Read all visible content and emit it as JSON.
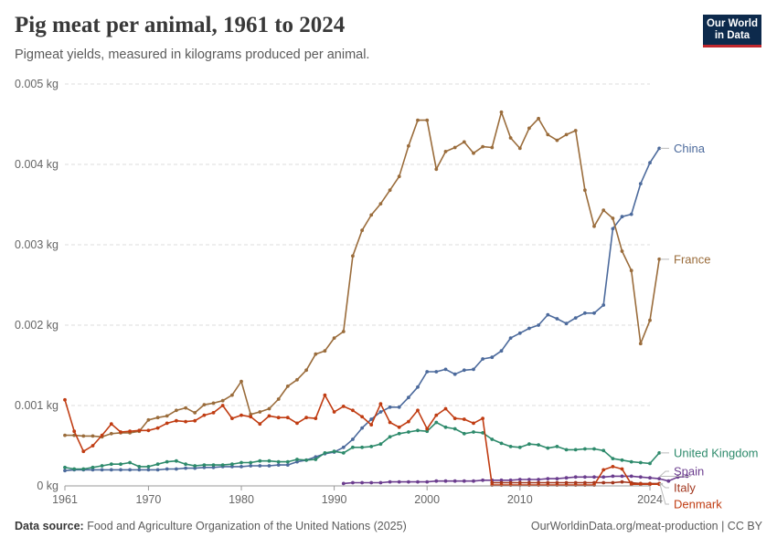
{
  "header": {
    "title": "Pig meat per animal, 1961 to 2024",
    "subtitle": "Pigmeat yields, measured in kilograms produced per animal."
  },
  "logo": {
    "line1": "Our World",
    "line2": "in Data"
  },
  "footer": {
    "source_label": "Data source:",
    "source_text": "Food and Agriculture Organization of the United Nations (2025)",
    "credit": "OurWorldinData.org/meat-production | CC BY"
  },
  "chart_data": {
    "type": "line",
    "title": "Pig meat per animal, 1961 to 2024",
    "subtitle": "Pigmeat yields, measured in kilograms produced per animal.",
    "ylim": [
      0,
      0.005
    ],
    "yticks": [
      0,
      0.001,
      0.002,
      0.003,
      0.004,
      0.005
    ],
    "ytick_labels": [
      "0 kg",
      "0.001 kg",
      "0.002 kg",
      "0.003 kg",
      "0.004 kg",
      "0.005 kg"
    ],
    "xlim": [
      1961,
      2024
    ],
    "xticks": [
      1961,
      1970,
      1980,
      1990,
      2000,
      2010,
      2024
    ],
    "grid": "horizontal dashed",
    "legend": "right, labels at line ends",
    "series": [
      {
        "name": "China",
        "color": "#4c6a9c",
        "start": 1961,
        "values": [
          0.00019,
          0.0002,
          0.0002,
          0.0002,
          0.0002,
          0.0002,
          0.0002,
          0.0002,
          0.0002,
          0.0002,
          0.0002,
          0.00021,
          0.00021,
          0.00022,
          0.00022,
          0.00023,
          0.00023,
          0.00024,
          0.00024,
          0.00024,
          0.00025,
          0.00025,
          0.00025,
          0.00026,
          0.00026,
          0.0003,
          0.00032,
          0.00036,
          0.0004,
          0.00042,
          0.00048,
          0.00058,
          0.00072,
          0.00083,
          0.00092,
          0.00098,
          0.00098,
          0.0011,
          0.00123,
          0.00142,
          0.00142,
          0.00145,
          0.00139,
          0.00144,
          0.00145,
          0.00158,
          0.0016,
          0.00168,
          0.00184,
          0.0019,
          0.00196,
          0.002,
          0.00213,
          0.00208,
          0.00202,
          0.00209,
          0.00215,
          0.00215,
          0.00225,
          0.0032,
          0.00335,
          0.00338,
          0.00376,
          0.00402,
          0.0042
        ]
      },
      {
        "name": "France",
        "color": "#9a6c3b",
        "start": 1961,
        "values": [
          0.00063,
          0.00063,
          0.00062,
          0.00062,
          0.00061,
          0.00065,
          0.00066,
          0.00066,
          0.00068,
          0.00082,
          0.00085,
          0.00087,
          0.00094,
          0.00097,
          0.00091,
          0.00101,
          0.00103,
          0.00106,
          0.00113,
          0.0013,
          0.00089,
          0.00092,
          0.00096,
          0.00108,
          0.00124,
          0.00132,
          0.00144,
          0.00164,
          0.00168,
          0.00184,
          0.00192,
          0.00286,
          0.00318,
          0.00337,
          0.00351,
          0.00368,
          0.00385,
          0.00423,
          0.00455,
          0.00455,
          0.00394,
          0.00416,
          0.00421,
          0.00428,
          0.00414,
          0.00422,
          0.00421,
          0.00465,
          0.00433,
          0.0042,
          0.00445,
          0.00457,
          0.00437,
          0.0043,
          0.00437,
          0.00442,
          0.00368,
          0.00323,
          0.00343,
          0.00333,
          0.00292,
          0.00268,
          0.00177,
          0.00206,
          0.00282
        ]
      },
      {
        "name": "United Kingdom",
        "color": "#2d8a6b",
        "start": 1961,
        "values": [
          0.00023,
          0.00021,
          0.00021,
          0.00023,
          0.00025,
          0.00027,
          0.00027,
          0.00029,
          0.00024,
          0.00024,
          0.00027,
          0.0003,
          0.00031,
          0.00027,
          0.00025,
          0.00026,
          0.00026,
          0.00026,
          0.00027,
          0.00029,
          0.00029,
          0.00031,
          0.00031,
          0.0003,
          0.0003,
          0.00033,
          0.00032,
          0.00033,
          0.00041,
          0.00043,
          0.00041,
          0.00048,
          0.00048,
          0.00049,
          0.00052,
          0.00061,
          0.00065,
          0.00067,
          0.00069,
          0.00068,
          0.00079,
          0.00073,
          0.00071,
          0.00065,
          0.00067,
          0.00066,
          0.00058,
          0.00053,
          0.00049,
          0.00048,
          0.00052,
          0.00051,
          0.00047,
          0.00049,
          0.00045,
          0.00045,
          0.00046,
          0.00046,
          0.00044,
          0.00034,
          0.00032,
          0.0003,
          0.00029,
          0.00028,
          0.00041
        ]
      },
      {
        "name": "Spain",
        "color": "#6b3d8e",
        "start": 1991,
        "values": [
          3e-05,
          4e-05,
          4e-05,
          4e-05,
          4e-05,
          5e-05,
          5e-05,
          5e-05,
          5e-05,
          5e-05,
          6e-05,
          6e-05,
          6e-05,
          6e-05,
          6e-05,
          7e-05,
          7e-05,
          7e-05,
          7e-05,
          8e-05,
          8e-05,
          8e-05,
          9e-05,
          9e-05,
          0.0001,
          0.00011,
          0.00011,
          0.00011,
          0.00011,
          0.00012,
          0.00012,
          0.00012,
          0.00011,
          0.0001,
          9e-05,
          6e-05,
          0.00011,
          0.00012
        ]
      },
      {
        "name": "Italy",
        "color": "#a2371f",
        "start": 2007,
        "values": [
          4e-05,
          4e-05,
          4e-05,
          4e-05,
          4e-05,
          4e-05,
          4e-05,
          4e-05,
          4e-05,
          4e-05,
          4e-05,
          4e-05,
          4e-05,
          4e-05,
          5e-05,
          4e-05,
          3e-05,
          3e-05,
          3e-05
        ]
      },
      {
        "name": "Denmark",
        "color": "#c03c12",
        "start": 1961,
        "values": [
          0.00107,
          0.00068,
          0.00043,
          0.0005,
          0.00063,
          0.00077,
          0.00067,
          0.00068,
          0.00069,
          0.00069,
          0.00072,
          0.00078,
          0.00081,
          0.0008,
          0.00081,
          0.00088,
          0.00091,
          0.001,
          0.00084,
          0.00088,
          0.00086,
          0.00077,
          0.00087,
          0.00085,
          0.00085,
          0.00078,
          0.00085,
          0.00084,
          0.00113,
          0.00092,
          0.00099,
          0.00094,
          0.00086,
          0.00076,
          0.00102,
          0.00079,
          0.00073,
          0.0008,
          0.00094,
          0.00071,
          0.00088,
          0.00096,
          0.00084,
          0.00083,
          0.00078,
          0.00084,
          1e-05,
          1e-05,
          1e-05,
          1e-05,
          1e-05,
          1e-05,
          1e-05,
          1e-05,
          1e-05,
          1e-05,
          1e-05,
          1e-05,
          0.0002,
          0.00024,
          0.00021,
          2e-05,
          2e-05,
          2e-05,
          2e-05
        ]
      }
    ]
  }
}
